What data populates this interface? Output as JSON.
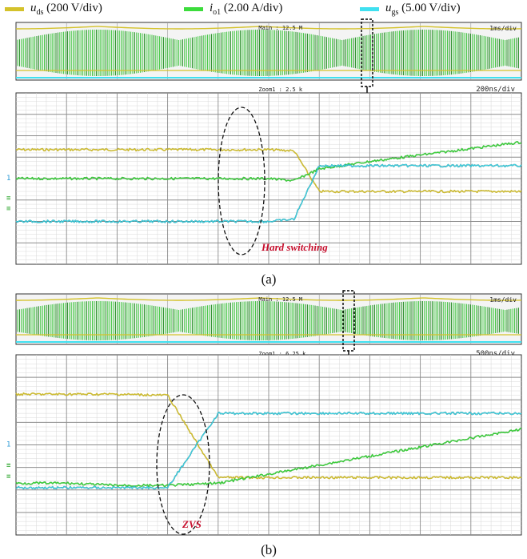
{
  "legend": [
    {
      "symbol": "u",
      "subscript": "ds",
      "scale": " (200 V/div)",
      "color": "#d4c22b"
    },
    {
      "symbol": "i",
      "subscript": "o1",
      "scale": " (2.00 A/div)",
      "color": "#3cdc3c"
    },
    {
      "symbol": "u",
      "subscript": "gs",
      "scale": " (5.00 V/div)",
      "color": "#40e0f0"
    }
  ],
  "chart_data": [
    {
      "type": "line",
      "panel": "(a)",
      "overview": {
        "main_label": "Main : 12.5 M",
        "timebase": "1ms/div"
      },
      "zoom": {
        "zoom_label": "Zoom1 : 2.5 k",
        "timebase": "200ns/div"
      },
      "annotation": "Hard switching",
      "caption": "(a)",
      "x": [
        0,
        1,
        2,
        3,
        4,
        5,
        5.5,
        6,
        7,
        8,
        9,
        10
      ],
      "series": [
        {
          "name": "u_ds (200 V/div)",
          "values": [
            1.35,
            1.35,
            1.35,
            1.35,
            1.35,
            1.35,
            1.3,
            -0.6,
            -0.6,
            -0.6,
            -0.6,
            -0.6
          ]
        },
        {
          "name": "i_o1 (2.00 A/div)",
          "values": [
            0.0,
            0.0,
            0.0,
            0.0,
            0.0,
            0.0,
            -0.1,
            0.45,
            0.8,
            1.1,
            1.4,
            1.7
          ]
        },
        {
          "name": "u_gs (5.00 V/div)",
          "values": [
            -2.0,
            -2.0,
            -2.0,
            -2.0,
            -2.0,
            -2.0,
            -1.9,
            0.6,
            0.6,
            0.6,
            0.6,
            0.6
          ]
        }
      ]
    },
    {
      "type": "line",
      "panel": "(b)",
      "overview": {
        "main_label": "Main : 12.5 M",
        "timebase": "1ms/div"
      },
      "zoom": {
        "zoom_label": "Zoom1 : 6.25 k",
        "timebase": "500ns/div"
      },
      "annotation": "ZVS",
      "caption": "(b)",
      "x": [
        0,
        1,
        2,
        3,
        4,
        5,
        6,
        7,
        8,
        9,
        10
      ],
      "series": [
        {
          "name": "u_ds (200 V/div)",
          "values": [
            2.25,
            2.25,
            2.25,
            2.2,
            -1.45,
            -1.45,
            -1.45,
            -1.45,
            -1.45,
            -1.45,
            -1.45
          ]
        },
        {
          "name": "i_o1 (2.00 A/div)",
          "values": [
            -1.7,
            -1.7,
            -1.8,
            -1.8,
            -1.7,
            -1.3,
            -0.9,
            -0.5,
            -0.1,
            0.3,
            0.7
          ]
        },
        {
          "name": "u_gs (5.00 V/div)",
          "values": [
            -1.9,
            -1.9,
            -1.9,
            -1.9,
            1.4,
            1.4,
            1.4,
            1.4,
            1.4,
            1.4,
            1.4
          ]
        }
      ]
    }
  ]
}
